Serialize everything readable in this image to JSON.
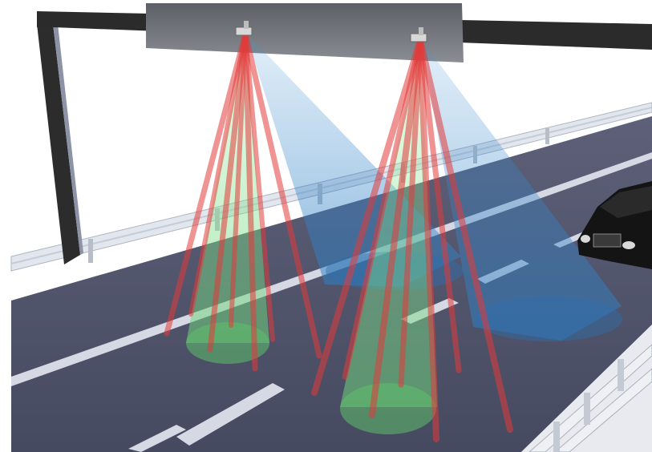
{
  "scene": {
    "kind": "3d-render",
    "description_visible_text": "",
    "colors": {
      "sky": "#ffffff",
      "road": "#4e5169",
      "road_far": "#5c5f77",
      "lane_marking": "#d8dbe6",
      "shoulder": "#e8eaf0",
      "gantry": "#2b2b2b",
      "gantry_post": "#3a3a3a",
      "sign": "#6d7177",
      "guardrail": "#dfe3ea",
      "guardrail_post": "#b8bec8",
      "laser_red": "#e23a3a",
      "laser_green": "#7fe08a",
      "cone_blue": "#3f8fd0",
      "car": "#121212",
      "headlight": "#d9d9d9"
    },
    "objects": [
      {
        "name": "gantry",
        "kind": "overhead-sign-structure"
      },
      {
        "name": "sensor-left",
        "kind": "laser-scanner"
      },
      {
        "name": "sensor-right",
        "kind": "laser-scanner"
      },
      {
        "name": "car",
        "kind": "sedan"
      }
    ]
  }
}
